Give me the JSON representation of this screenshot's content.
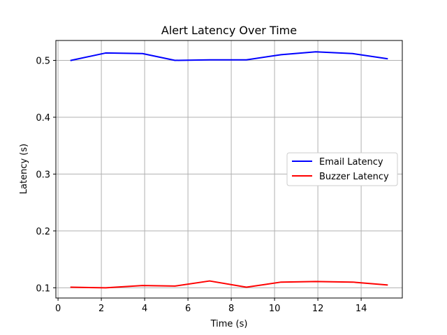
{
  "chart_data": {
    "type": "line",
    "title": "Alert Latency Over Time",
    "xlabel": "Time (s)",
    "ylabel": "Latency (s)",
    "xlim": [
      -0.1,
      15.9
    ],
    "ylim": [
      0.082,
      0.535
    ],
    "xticks": [
      0,
      2,
      4,
      6,
      8,
      10,
      12,
      14
    ],
    "yticks": [
      0.1,
      0.2,
      0.3,
      0.4,
      0.5
    ],
    "xtick_labels": [
      "0",
      "2",
      "4",
      "6",
      "8",
      "10",
      "12",
      "14"
    ],
    "ytick_labels": [
      "0.1",
      "0.2",
      "0.3",
      "0.4",
      "0.5"
    ],
    "grid": true,
    "legend_position": "center-right",
    "x": [
      0.6,
      2.2,
      3.9,
      5.4,
      7.0,
      8.7,
      10.3,
      11.9,
      13.6,
      15.2
    ],
    "series": [
      {
        "name": "Email Latency",
        "color": "#0000ff",
        "values": [
          0.5,
          0.513,
          0.512,
          0.5,
          0.501,
          0.501,
          0.51,
          0.515,
          0.512,
          0.503
        ]
      },
      {
        "name": "Buzzer Latency",
        "color": "#ff0000",
        "values": [
          0.101,
          0.1,
          0.104,
          0.103,
          0.112,
          0.101,
          0.11,
          0.111,
          0.11,
          0.105
        ]
      }
    ]
  }
}
